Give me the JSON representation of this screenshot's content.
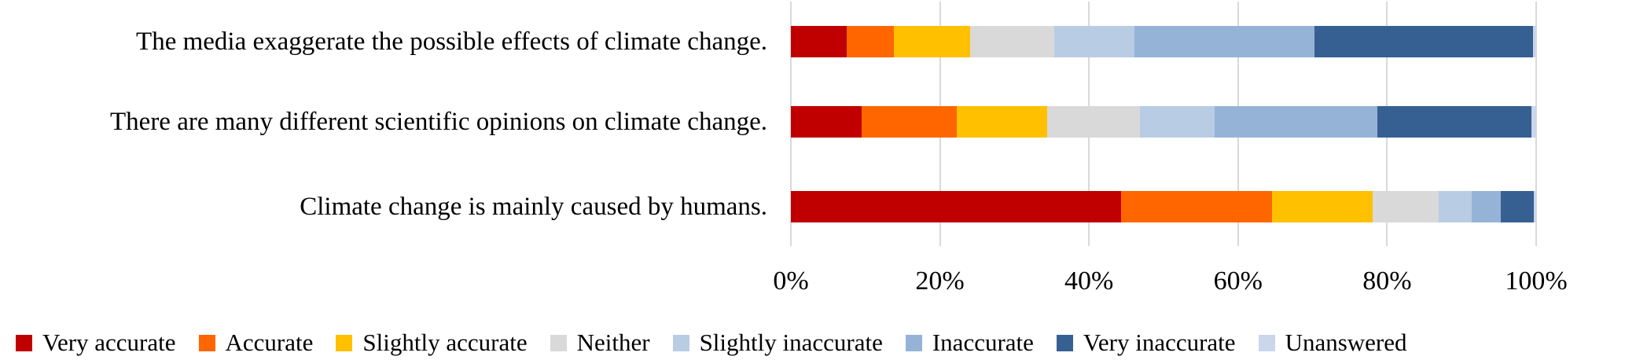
{
  "chart_data": {
    "type": "bar",
    "variant": "horizontal-stacked",
    "title": "",
    "xlabel": "",
    "ylabel": "",
    "xlim": [
      0,
      100
    ],
    "grid": "vertical",
    "gridline_color": "#d9d9d9",
    "legend_position": "bottom",
    "categories": [
      "The media exaggerate the possible effects of climate change.",
      "There are many different scientific opinions on climate change.",
      "Climate change is mainly caused by humans."
    ],
    "x_ticks": [
      "0%",
      "20%",
      "40%",
      "60%",
      "80%",
      "100%"
    ],
    "x_tick_values": [
      0,
      20,
      40,
      60,
      80,
      100
    ],
    "series": [
      {
        "name": "Very accurate",
        "color": "#c00000",
        "values": [
          7.5,
          9.5,
          44.3
        ]
      },
      {
        "name": "Accurate",
        "color": "#ff6600",
        "values": [
          6.3,
          12.8,
          20.3
        ]
      },
      {
        "name": "Slightly accurate",
        "color": "#ffc000",
        "values": [
          10.2,
          12.1,
          13.5
        ]
      },
      {
        "name": "Neither",
        "color": "#d9d9d9",
        "values": [
          11.3,
          12.4,
          8.8
        ]
      },
      {
        "name": "Slightly inaccurate",
        "color": "#b8cce4",
        "values": [
          10.8,
          10.1,
          4.4
        ]
      },
      {
        "name": "Inaccurate",
        "color": "#95b3d7",
        "values": [
          24.2,
          21.8,
          4.0
        ]
      },
      {
        "name": "Very inaccurate",
        "color": "#376092",
        "values": [
          29.3,
          20.7,
          4.4
        ]
      },
      {
        "name": "Unanswered",
        "color": "#c9d6ec",
        "values": [
          0.4,
          0.6,
          0.3
        ]
      }
    ]
  }
}
